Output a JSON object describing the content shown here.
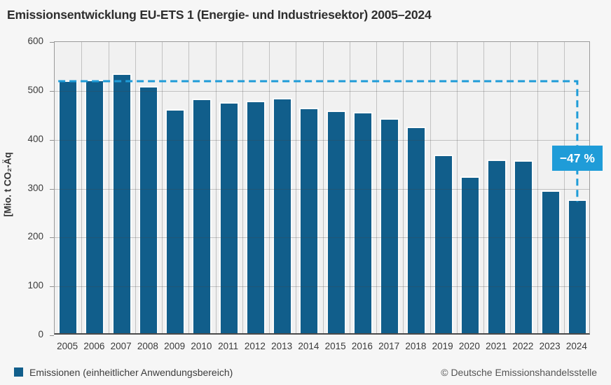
{
  "title": "Emissionsentwicklung EU-ETS 1 (Energie- und Industriesektor) 2005–2024",
  "annotation": {
    "label": "−47 %"
  },
  "legend": {
    "label": "Emissionen (einheitlicher Anwendungsbereich)"
  },
  "footer": {
    "copyright": "© Deutsche Emissionshandelsstelle"
  },
  "colors": {
    "bar": "#115e8b",
    "accent": "#1f9cd8",
    "plot_bg": "#f1f1f1",
    "page_bg": "#f6f6f6",
    "grid": "#c2c2c2",
    "frame": "#9a9a9a",
    "axis": "#4a4a4a"
  },
  "chart_data": {
    "type": "bar",
    "title": "Emissionsentwicklung EU-ETS 1 (Energie- und Industriesektor) 2005–2024",
    "xlabel": "",
    "ylabel": "[Mio. t CO₂-Äq",
    "ylim": [
      0,
      600
    ],
    "yticks": [
      0,
      100,
      200,
      300,
      400,
      500,
      600
    ],
    "grid": true,
    "legend_position": "bottom-left",
    "categories": [
      "2005",
      "2006",
      "2007",
      "2008",
      "2009",
      "2010",
      "2011",
      "2012",
      "2013",
      "2014",
      "2015",
      "2016",
      "2017",
      "2018",
      "2019",
      "2020",
      "2021",
      "2022",
      "2023",
      "2024"
    ],
    "values": [
      517,
      518,
      531,
      505,
      458,
      480,
      473,
      475,
      481,
      461,
      456,
      453,
      440,
      423,
      365,
      321,
      355,
      354,
      292,
      273
    ],
    "series_name": "Emissionen (einheitlicher Anwendungsbereich)",
    "annotation": {
      "text": "−47 %",
      "reference_year": "2005",
      "reference_value": 517,
      "target_year": "2024",
      "target_value": 273,
      "style": "dashed line from 2005 level to 2024 bar top"
    }
  }
}
